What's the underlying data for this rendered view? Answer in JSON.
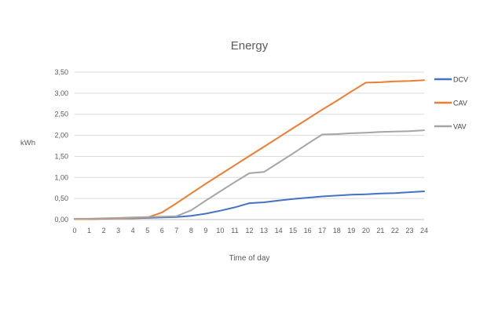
{
  "chart_data": {
    "type": "line",
    "title": "Energy",
    "xlabel": "Time of day",
    "ylabel": "kWh",
    "x": [
      0,
      1,
      2,
      3,
      4,
      5,
      6,
      7,
      8,
      9,
      10,
      11,
      12,
      13,
      14,
      15,
      16,
      17,
      18,
      19,
      20,
      21,
      22,
      23,
      24
    ],
    "xlim": [
      0,
      24
    ],
    "ylim": [
      0,
      3.5
    ],
    "ytick_step": 0.5,
    "ytick_labels": [
      "0,00",
      "0,50",
      "1,00",
      "1,50",
      "2,00",
      "2,50",
      "3,00",
      "3,50"
    ],
    "grid": true,
    "legend_position": "right",
    "series": [
      {
        "name": "DCV",
        "color": "#4472C4",
        "values": [
          0.01,
          0.01,
          0.02,
          0.03,
          0.03,
          0.04,
          0.05,
          0.06,
          0.09,
          0.14,
          0.21,
          0.29,
          0.39,
          0.41,
          0.45,
          0.49,
          0.52,
          0.55,
          0.57,
          0.59,
          0.6,
          0.62,
          0.63,
          0.65,
          0.67
        ]
      },
      {
        "name": "CAV",
        "color": "#ED7D31",
        "values": [
          0.01,
          0.01,
          0.02,
          0.03,
          0.04,
          0.05,
          0.17,
          0.39,
          0.62,
          0.85,
          1.07,
          1.29,
          1.51,
          1.73,
          1.95,
          2.17,
          2.39,
          2.61,
          2.82,
          3.04,
          3.25,
          3.26,
          3.28,
          3.29,
          3.31
        ]
      },
      {
        "name": "VAV",
        "color": "#A5A5A5",
        "values": [
          0.02,
          0.02,
          0.03,
          0.04,
          0.05,
          0.06,
          0.07,
          0.08,
          0.22,
          0.45,
          0.67,
          0.89,
          1.1,
          1.13,
          1.35,
          1.57,
          1.8,
          2.02,
          2.03,
          2.05,
          2.06,
          2.08,
          2.09,
          2.1,
          2.12
        ]
      }
    ],
    "colors": {
      "gridline": "#D9D9D9",
      "axis_line": "#BFBFBF",
      "tick_text": "#595959",
      "legend_text": "#404040"
    }
  }
}
